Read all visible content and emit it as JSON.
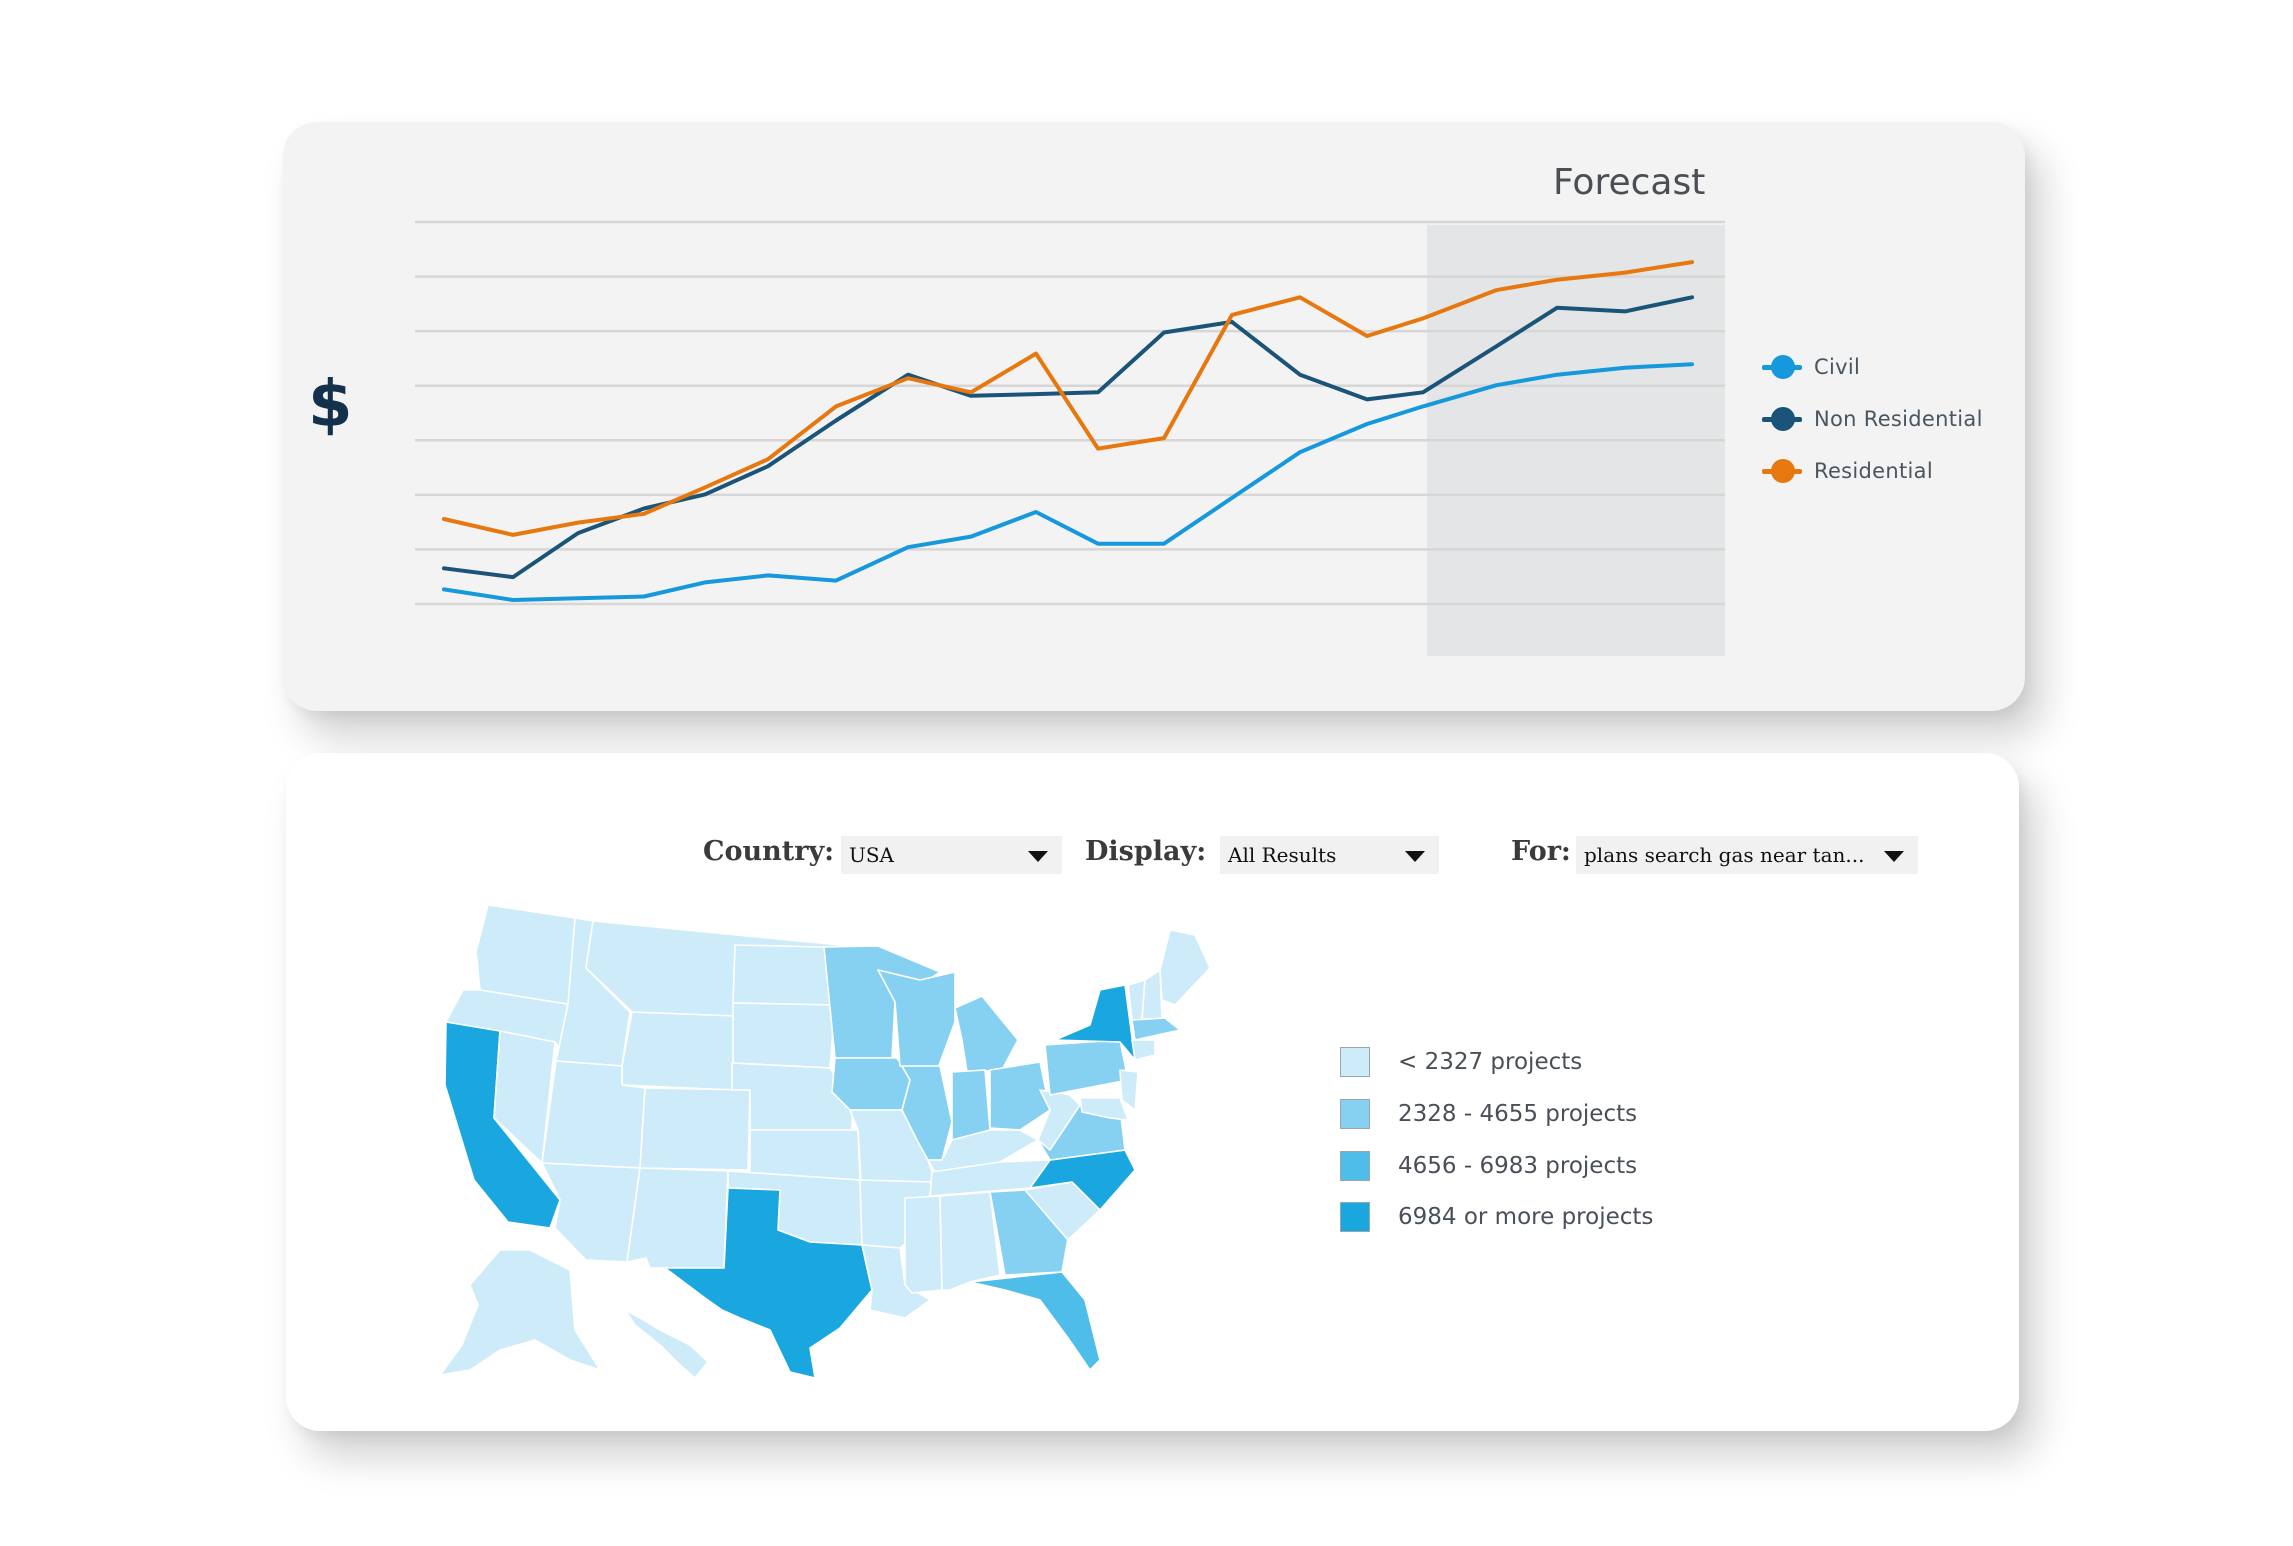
{
  "forecast_panel": {
    "title": "Forecast",
    "currency_symbol": "$",
    "legend": [
      {
        "label": "Civil",
        "color": "#1698dd"
      },
      {
        "label": "Non Residential",
        "color": "#1a5479"
      },
      {
        "label": "Residential",
        "color": "#e7780f"
      }
    ]
  },
  "chart_data": {
    "type": "line",
    "title": "Forecast",
    "xlabel": "",
    "ylabel": "$",
    "grid": true,
    "gridlines": 8,
    "ylim": [
      0,
      100
    ],
    "forecast_region_from_index": 15,
    "legend_position": "right",
    "x": [
      1,
      2,
      3,
      4,
      5,
      6,
      7,
      8,
      9,
      10,
      11,
      12,
      13,
      14,
      15,
      16,
      17,
      18,
      19,
      20
    ],
    "series": [
      {
        "name": "Civil",
        "color": "#1698dd",
        "values": [
          3,
          0,
          0.5,
          1,
          5,
          7,
          5.5,
          15,
          18,
          25,
          16,
          16,
          29,
          42,
          50,
          55,
          61,
          64,
          66,
          67
        ]
      },
      {
        "name": "Non Residential",
        "color": "#1a5479",
        "values": [
          9,
          6.5,
          19,
          26,
          30,
          38,
          51,
          64,
          58,
          58.5,
          59,
          76,
          79,
          64,
          57,
          59,
          72,
          83,
          82,
          86
        ]
      },
      {
        "name": "Residential",
        "color": "#e7780f",
        "values": [
          23,
          18.5,
          22,
          24.5,
          32,
          40,
          55,
          63,
          59,
          70,
          43,
          46,
          81,
          86,
          75,
          80,
          88,
          91,
          93,
          96
        ]
      }
    ]
  },
  "filters": {
    "country": {
      "label": "Country:",
      "value": "USA"
    },
    "display": {
      "label": "Display:",
      "value": "All Results"
    },
    "for": {
      "label": "For:",
      "value": "plans search gas near tan..."
    }
  },
  "map_legend": [
    {
      "label": "< 2327 projects",
      "color": "#cdebf8"
    },
    {
      "label": "2328 - 4655 projects",
      "color": "#86d0f1"
    },
    {
      "label": "4656 - 6983 projects",
      "color": "#4fbde9"
    },
    {
      "label": "6984 or more projects",
      "color": "#1aa7e0"
    }
  ],
  "map_colors": {
    "tier1": "#cdebf8",
    "tier2": "#86d0f1",
    "tier3": "#4fbde9",
    "tier4": "#1aa7e0",
    "border": "#ffffff"
  }
}
